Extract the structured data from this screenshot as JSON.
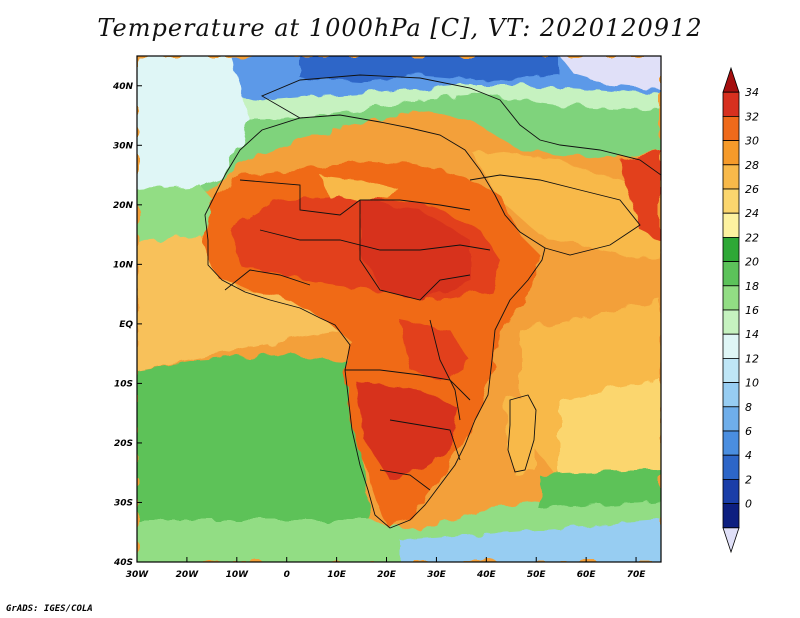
{
  "title": "Temperature at 1000hPa [C], VT: 2020120912",
  "credit": "GrADS: IGES/COLA",
  "map": {
    "lon_range": [
      -30,
      75
    ],
    "lat_range": [
      -40,
      45
    ],
    "lon_ticks": [
      {
        "value": -30,
        "label": "30W"
      },
      {
        "value": -20,
        "label": "20W"
      },
      {
        "value": -10,
        "label": "10W"
      },
      {
        "value": 0,
        "label": "0"
      },
      {
        "value": 10,
        "label": "10E"
      },
      {
        "value": 20,
        "label": "20E"
      },
      {
        "value": 30,
        "label": "30E"
      },
      {
        "value": 40,
        "label": "40E"
      },
      {
        "value": 50,
        "label": "50E"
      },
      {
        "value": 60,
        "label": "60E"
      },
      {
        "value": 70,
        "label": "70E"
      }
    ],
    "lat_ticks": [
      {
        "value": 40,
        "label": "40N"
      },
      {
        "value": 30,
        "label": "30N"
      },
      {
        "value": 20,
        "label": "20N"
      },
      {
        "value": 10,
        "label": "10N"
      },
      {
        "value": 0,
        "label": "EQ"
      },
      {
        "value": -10,
        "label": "10S"
      },
      {
        "value": -20,
        "label": "20S"
      },
      {
        "value": -30,
        "label": "30S"
      },
      {
        "value": -40,
        "label": "40S"
      }
    ]
  },
  "colorbar": {
    "levels": [
      "34",
      "32",
      "30",
      "28",
      "26",
      "24",
      "22",
      "20",
      "18",
      "16",
      "14",
      "12",
      "10",
      "8",
      "6",
      "4",
      "2",
      "0"
    ],
    "colors": [
      "#a50f0f",
      "#d7301f",
      "#ef6a1a",
      "#f59a2a",
      "#f8b94a",
      "#fbd66e",
      "#fdf2a0",
      "#2ea836",
      "#5cc25a",
      "#92dd84",
      "#c6f2c0",
      "#dff6f6",
      "#bfe6f6",
      "#97cdf2",
      "#6faeea",
      "#4a8ee0",
      "#2d66c8",
      "#1a3ea8",
      "#0d1f80",
      "#e0e0f8"
    ]
  },
  "colors": {
    "sahara_hot": "#e2401b",
    "land_warm": "#f06a17",
    "ocean_tropics": "#f3a03a",
    "ocean_mid": "#f8c15a",
    "south_atlantic": "#5dc259",
    "north_cool": "#7fd37b",
    "europe": "#5b99e8"
  }
}
